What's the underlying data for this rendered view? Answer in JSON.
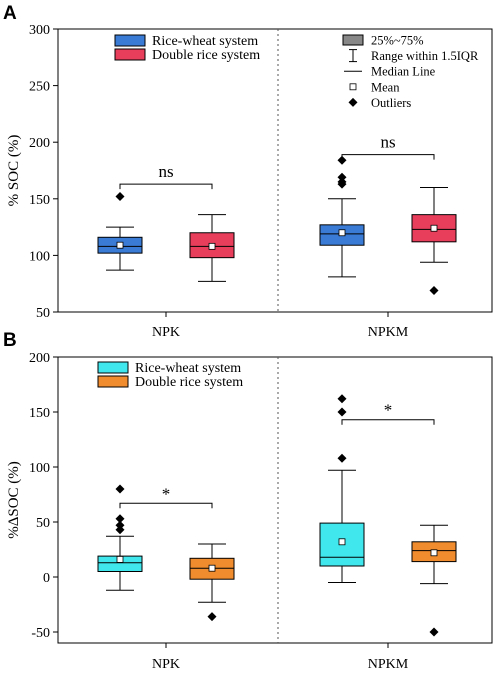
{
  "chart_data": [
    {
      "type": "box",
      "panel_label": "A",
      "ylabel": "% SOC (%)",
      "ylim": [
        50,
        300
      ],
      "yticks": [
        50,
        100,
        150,
        200,
        250,
        300
      ],
      "categories": [
        "NPK",
        "NPKM"
      ],
      "legend": {
        "series": [
          {
            "name": "Rice-wheat system",
            "color": "#3a7bd5"
          },
          {
            "name": "Double rice system",
            "color": "#e83e5c"
          }
        ],
        "key": [
          {
            "symbol": "box",
            "label": "25%~75%"
          },
          {
            "symbol": "whisker",
            "label": "Range within 1.5IQR"
          },
          {
            "symbol": "line",
            "label": "Median Line"
          },
          {
            "symbol": "square",
            "label": "Mean"
          },
          {
            "symbol": "diamond",
            "label": "Outliers"
          }
        ]
      },
      "boxes": [
        {
          "category": "NPK",
          "series": "Rice-wheat system",
          "color": "#3a7bd5",
          "whisker_low": 87,
          "q1": 102,
          "median": 108,
          "q3": 116,
          "whisker_high": 125,
          "mean": 109,
          "outliers": [
            152
          ]
        },
        {
          "category": "NPK",
          "series": "Double rice system",
          "color": "#e83e5c",
          "whisker_low": 77,
          "q1": 98,
          "median": 108,
          "q3": 120,
          "whisker_high": 136,
          "mean": 108,
          "outliers": []
        },
        {
          "category": "NPKM",
          "series": "Rice-wheat system",
          "color": "#3a7bd5",
          "whisker_low": 81,
          "q1": 109,
          "median": 119,
          "q3": 127,
          "whisker_high": 150,
          "mean": 120,
          "outliers": [
            163,
            165,
            169,
            184
          ]
        },
        {
          "category": "NPKM",
          "series": "Double rice system",
          "color": "#e83e5c",
          "whisker_low": 94,
          "q1": 112,
          "median": 123,
          "q3": 136,
          "whisker_high": 160,
          "mean": 124,
          "outliers": [
            69
          ]
        }
      ],
      "significance": [
        {
          "category": "NPK",
          "label": "ns",
          "y": 163
        },
        {
          "category": "NPKM",
          "label": "ns",
          "y": 189
        }
      ]
    },
    {
      "type": "box",
      "panel_label": "B",
      "ylabel": "%ΔSOC (%)",
      "ylim": [
        -60,
        200
      ],
      "yticks": [
        -50,
        0,
        50,
        100,
        150,
        200
      ],
      "categories": [
        "NPK",
        "NPKM"
      ],
      "legend": {
        "series": [
          {
            "name": "Rice-wheat system",
            "color": "#40e8ee"
          },
          {
            "name": "Double rice system",
            "color": "#f08c2e"
          }
        ]
      },
      "boxes": [
        {
          "category": "NPK",
          "series": "Rice-wheat system",
          "color": "#40e8ee",
          "whisker_low": -12,
          "q1": 5,
          "median": 13,
          "q3": 19,
          "whisker_high": 37,
          "mean": 16,
          "outliers": [
            43,
            47,
            53,
            80
          ]
        },
        {
          "category": "NPK",
          "series": "Double rice system",
          "color": "#f08c2e",
          "whisker_low": -23,
          "q1": -2,
          "median": 8,
          "q3": 17,
          "whisker_high": 30,
          "mean": 8,
          "outliers": [
            -36
          ]
        },
        {
          "category": "NPKM",
          "series": "Rice-wheat system",
          "color": "#40e8ee",
          "whisker_low": -5,
          "q1": 10,
          "median": 18,
          "q3": 49,
          "whisker_high": 97,
          "mean": 32,
          "outliers": [
            108,
            150,
            162
          ]
        },
        {
          "category": "NPKM",
          "series": "Double rice system",
          "color": "#f08c2e",
          "whisker_low": -6,
          "q1": 14,
          "median": 24,
          "q3": 32,
          "whisker_high": 47,
          "mean": 22,
          "outliers": [
            -50
          ]
        }
      ],
      "significance": [
        {
          "category": "NPK",
          "label": "*",
          "y": 67
        },
        {
          "category": "NPKM",
          "label": "*",
          "y": 143
        }
      ]
    }
  ]
}
